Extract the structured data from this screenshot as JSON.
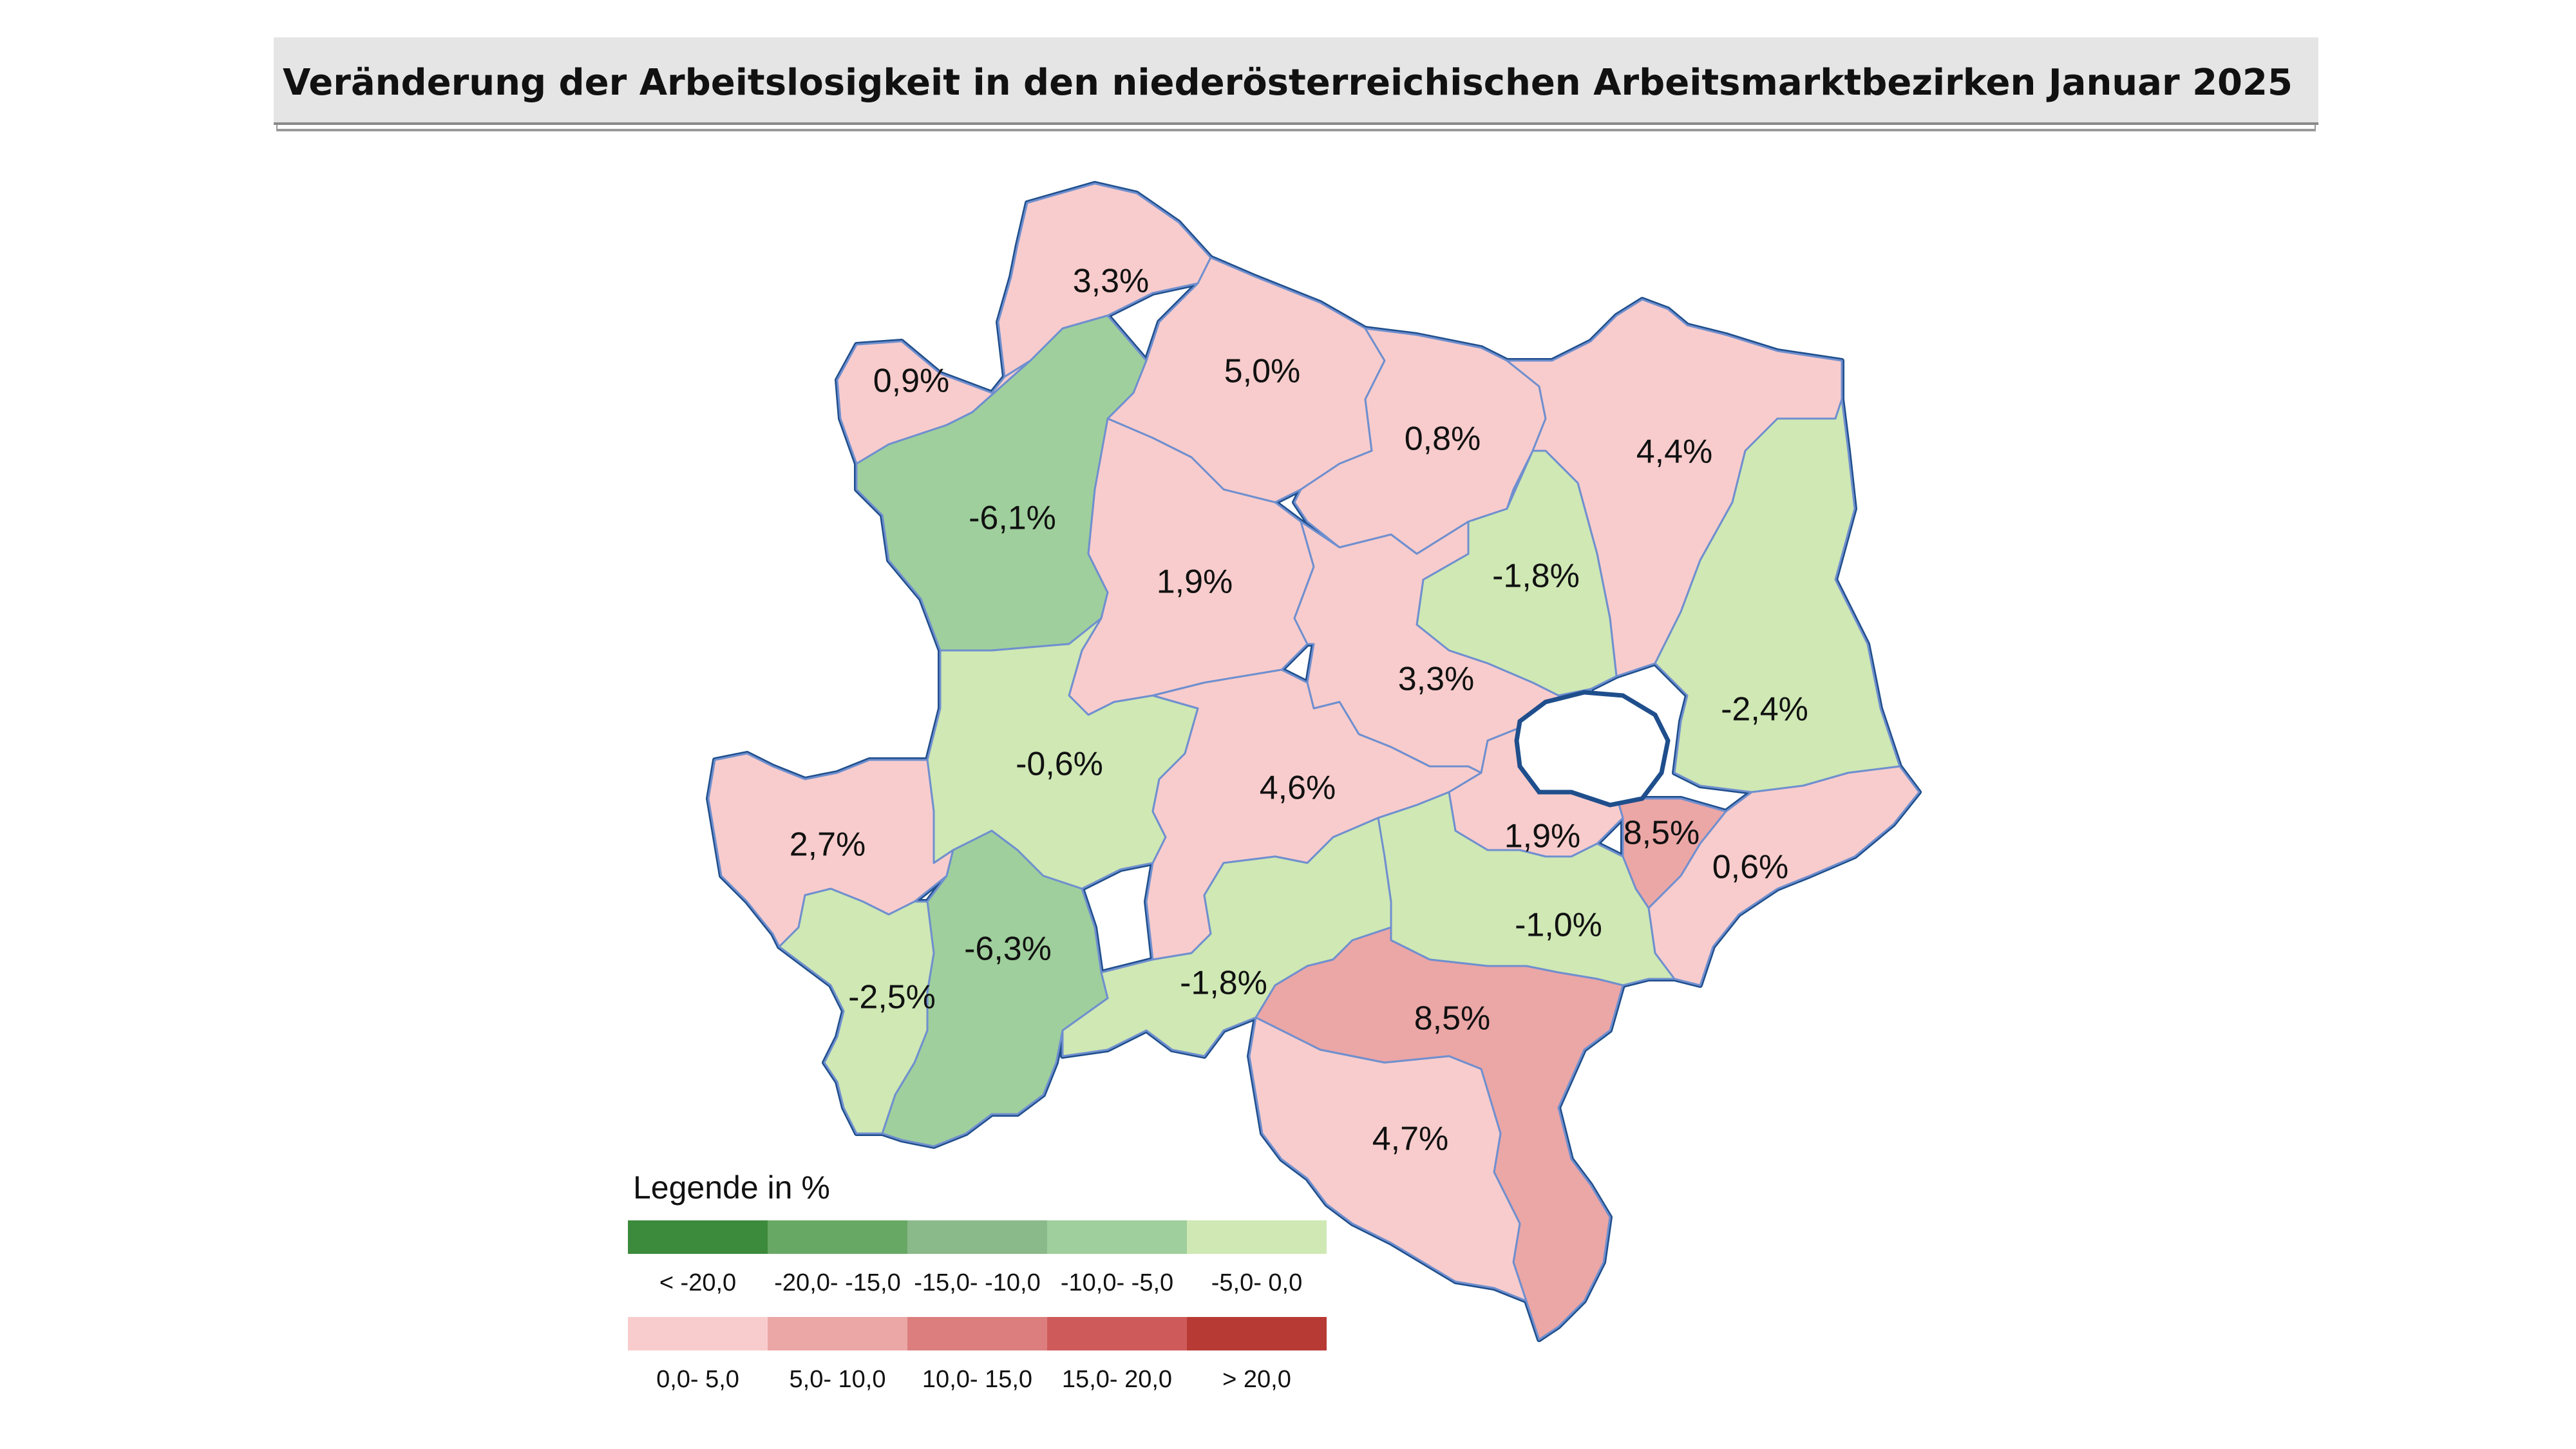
{
  "title": "Veränderung der Arbeitslosigkeit in den niederösterreichischen Arbeitsmarktbezirken Januar 2025",
  "colors": {
    "border_outer": "#1f4e8c",
    "border_inner": "#6f8fcf",
    "vienna_hole": "#ffffff"
  },
  "districts": [
    {
      "id": "gmuend",
      "value": "3,3%",
      "color": "#f8cccc"
    },
    {
      "id": "waidhofen-thaya",
      "value": "5,0%",
      "color": "#f8cccc"
    },
    {
      "id": "hollabrunn",
      "value": "0,8%",
      "color": "#f8cccc"
    },
    {
      "id": "mistelbach",
      "value": "4,4%",
      "color": "#f8cccc"
    },
    {
      "id": "gmuend-west",
      "value": "0,9%",
      "color": "#f8cccc"
    },
    {
      "id": "zwettl",
      "value": "-6,1%",
      "color": "#9fcf9c"
    },
    {
      "id": "horn",
      "value": "1,9%",
      "color": "#f8cccc"
    },
    {
      "id": "korneuburg",
      "value": "-1,8%",
      "color": "#cfe8b4"
    },
    {
      "id": "gaenserndorf",
      "value": "-2,4%",
      "color": "#cfe8b4"
    },
    {
      "id": "tulln",
      "value": "3,3%",
      "color": "#f8cccc"
    },
    {
      "id": "melk",
      "value": "-0,6%",
      "color": "#cfe8b4"
    },
    {
      "id": "st-poelten",
      "value": "4,6%",
      "color": "#f8cccc"
    },
    {
      "id": "amstetten",
      "value": "2,7%",
      "color": "#f8cccc"
    },
    {
      "id": "scheibbs",
      "value": "-6,3%",
      "color": "#9fcf9c"
    },
    {
      "id": "waidhofen-ybbs",
      "value": "-2,5%",
      "color": "#cfe8b4"
    },
    {
      "id": "lilienfeld",
      "value": "-1,8%",
      "color": "#cfe8b4"
    },
    {
      "id": "moedling",
      "value": "1,9%",
      "color": "#f8cccc"
    },
    {
      "id": "schwechat",
      "value": "8,5%",
      "color": "#eba6a6"
    },
    {
      "id": "bruck",
      "value": "0,6%",
      "color": "#f8cccc"
    },
    {
      "id": "baden",
      "value": "-1,0%",
      "color": "#cfe8b4"
    },
    {
      "id": "wr-neustadt",
      "value": "8,5%",
      "color": "#eba6a6"
    },
    {
      "id": "neunkirchen",
      "value": "4,7%",
      "color": "#f8cccc"
    }
  ],
  "legend": {
    "title": "Legende in %",
    "negative": [
      {
        "label": "< -20,0",
        "color": "#3c8a3c"
      },
      {
        "label": "-20,0- -15,0",
        "color": "#68a865"
      },
      {
        "label": "-15,0- -10,0",
        "color": "#8ab98a"
      },
      {
        "label": "-10,0- -5,0",
        "color": "#9fcf9c"
      },
      {
        "label": "-5,0- 0,0",
        "color": "#cfe8b4"
      }
    ],
    "positive": [
      {
        "label": "0,0- 5,0",
        "color": "#f8cccc"
      },
      {
        "label": "5,0- 10,0",
        "color": "#eba6a6"
      },
      {
        "label": "10,0- 15,0",
        "color": "#dc7e7e"
      },
      {
        "label": "15,0- 20,0",
        "color": "#cf5a5a"
      },
      {
        "label": "> 20,0",
        "color": "#b83a35"
      }
    ]
  }
}
